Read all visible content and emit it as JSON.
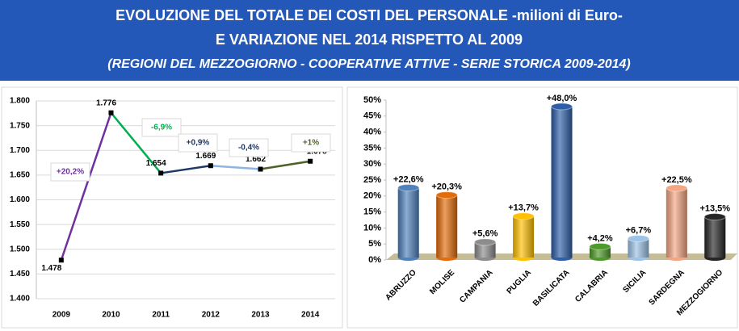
{
  "header": {
    "lines": [
      "EVOLUZIONE DEL TOTALE DEI COSTI DEL PERSONALE -milioni di Euro-",
      "E VARIAZIONE NEL 2014 RISPETTO AL 2009",
      "(REGIONI DEL MEZZOGIORNO - COOPERATIVE ATTIVE - SERIE STORICA 2009-2014)"
    ]
  },
  "chart_data": [
    {
      "type": "line",
      "categories": [
        "2009",
        "2010",
        "2011",
        "2012",
        "2013",
        "2014"
      ],
      "values": [
        1478,
        1776,
        1654,
        1669,
        1662,
        1678
      ],
      "value_labels": [
        "1.478",
        "1.776",
        "1.654",
        "1.669",
        "1.662",
        "1.678"
      ],
      "segment_colors": [
        "#7030a0",
        "#00b050",
        "#1f3864",
        "#8db4e2",
        "#4f6228"
      ],
      "annotations": [
        {
          "text": "+20,2%",
          "color": "#7030a0"
        },
        {
          "text": "-6,9%",
          "color": "#00b050"
        },
        {
          "text": "+0,9%",
          "color": "#1f3864"
        },
        {
          "text": "-0,4%",
          "color": "#1f3864"
        },
        {
          "text": "+1%",
          "color": "#4f6228"
        }
      ],
      "ylim": [
        1400,
        1800
      ],
      "yticks": [
        {
          "value": 1400,
          "label": "1.400"
        },
        {
          "value": 1450,
          "label": "1.450"
        },
        {
          "value": 1500,
          "label": "1.500"
        },
        {
          "value": 1550,
          "label": "1.550"
        },
        {
          "value": 1600,
          "label": "1.600"
        },
        {
          "value": 1650,
          "label": "1.650"
        },
        {
          "value": 1700,
          "label": "1.700"
        },
        {
          "value": 1750,
          "label": "1.750"
        },
        {
          "value": 1800,
          "label": "1.800"
        }
      ],
      "grid": true
    },
    {
      "type": "bar",
      "categories": [
        "ABRUZZO",
        "MOLISE",
        "CAMPANIA",
        "PUGLIA",
        "BASILICATA",
        "CALABRIA",
        "SICILIA",
        "SARDEGNA",
        "MEZZOGIORNO"
      ],
      "values": [
        22.6,
        20.3,
        5.6,
        13.7,
        48.0,
        4.2,
        6.7,
        22.5,
        13.5
      ],
      "value_labels": [
        "+22,6%",
        "+20,3%",
        "+5,6%",
        "+13,7%",
        "+48,0%",
        "+4,2%",
        "+6,7%",
        "+22,5%",
        "+13,5%"
      ],
      "colors": [
        "#4f81bd",
        "#e46c0a",
        "#8c8c8c",
        "#ffc000",
        "#2e5fa8",
        "#4e9a2a",
        "#9dc3e6",
        "#f4a582",
        "#262626"
      ],
      "ylim": [
        0,
        50
      ],
      "yticks": [
        {
          "value": 0,
          "label": "0%"
        },
        {
          "value": 5,
          "label": "5%"
        },
        {
          "value": 10,
          "label": "10%"
        },
        {
          "value": 15,
          "label": "15%"
        },
        {
          "value": 20,
          "label": "20%"
        },
        {
          "value": 25,
          "label": "25%"
        },
        {
          "value": 30,
          "label": "30%"
        },
        {
          "value": 35,
          "label": "35%"
        },
        {
          "value": 40,
          "label": "40%"
        },
        {
          "value": 45,
          "label": "45%"
        },
        {
          "value": 50,
          "label": "50%"
        }
      ],
      "grid": false
    }
  ]
}
